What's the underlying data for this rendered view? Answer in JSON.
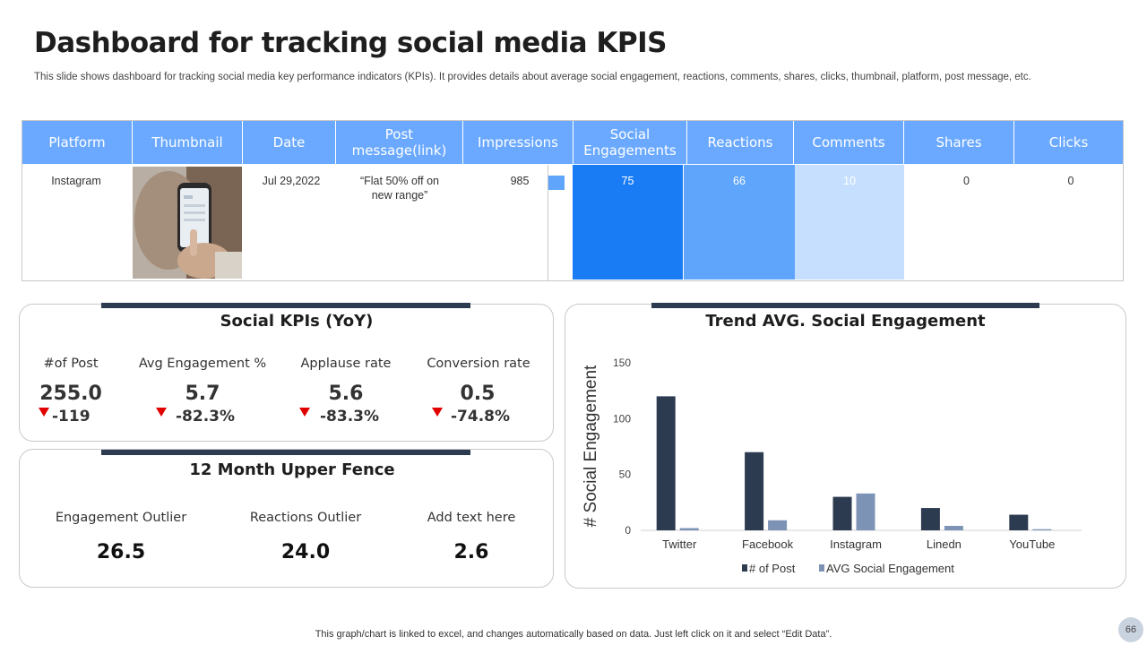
{
  "title": "Dashboard for tracking social media KPIS",
  "subtitle": "This slide shows dashboard for tracking social media key performance indicators (KPIs). It provides details about average social engagement, reactions, comments, shares, clicks, thumbnail, platform, post message, etc.",
  "table": {
    "headers": {
      "platform": "Platform",
      "thumbnail": "Thumbnail",
      "date": "Date",
      "post_message_line1": "Post",
      "post_message_line2": "message(link)",
      "impressions": "Impressions",
      "social_engagements_line1": "Social",
      "social_engagements_line2": "Engagements",
      "reactions": "Reactions",
      "comments": "Comments",
      "shares": "Shares",
      "clicks": "Clicks"
    },
    "row": {
      "platform": "Instagram",
      "date": "Jul 29,2022",
      "post_message_line1": "“Flat 50% off on",
      "post_message_line2": "new range”",
      "impressions": "985",
      "social_engagements": "75",
      "reactions": "66",
      "comments": "10",
      "shares": "0",
      "clicks": "0"
    },
    "colors": {
      "header": "#6aa9ff",
      "engagements": "#1a7cf5",
      "reactions": "#5ea5fb",
      "comments": "#c6dfff"
    }
  },
  "social_kpis": {
    "title": "Social KPIs (YoY)",
    "items": [
      {
        "label": "#of Post",
        "value": "255.0",
        "change": "-119"
      },
      {
        "label": "Avg Engagement %",
        "value": "5.7",
        "change": "-82.3%"
      },
      {
        "label": "Applause rate",
        "value": "5.6",
        "change": "-83.3%"
      },
      {
        "label": "Conversion rate",
        "value": "0.5",
        "change": "-74.8%"
      }
    ]
  },
  "upper_fence": {
    "title": "12 Month Upper Fence",
    "items": [
      {
        "label": "Engagement Outlier",
        "value": "26.5"
      },
      {
        "label": "Reactions Outlier",
        "value": "24.0"
      },
      {
        "label": "Add text here",
        "value": "2.6"
      }
    ]
  },
  "chart_data": {
    "type": "bar",
    "title": "Trend AVG. Social Engagement",
    "ylabel": "# Social Engagement",
    "xlabel": "",
    "categories": [
      "Twitter",
      "Facebook",
      "Instagram",
      "Linedn",
      "YouTube"
    ],
    "series": [
      {
        "name": "# of Post",
        "values": [
          120,
          70,
          30,
          20,
          14
        ],
        "color": "#2d3b50"
      },
      {
        "name": "AVG Social Engagement",
        "values": [
          2,
          9,
          33,
          4,
          1
        ],
        "color": "#7d93b5"
      }
    ],
    "ylim": [
      0,
      150
    ],
    "yticks": [
      "0",
      "50",
      "100",
      "150"
    ],
    "legend_position": "bottom"
  },
  "footer": "This graph/chart is linked to excel,  and changes automatically based on data. Just left click on it and select “Edit Data”.",
  "page_number": "66"
}
